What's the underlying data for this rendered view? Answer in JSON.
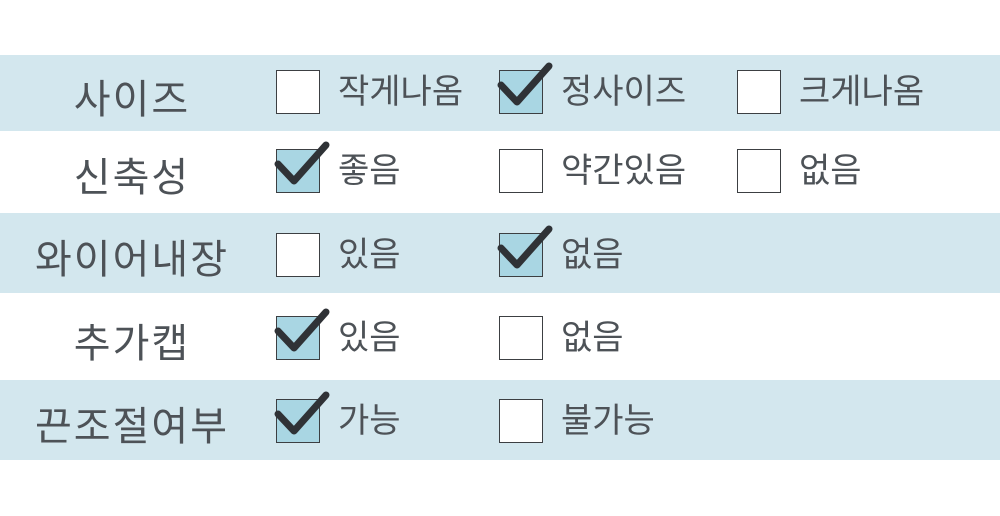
{
  "rows": [
    {
      "label": "사이즈",
      "options": [
        {
          "label": "작게나옴",
          "checked": false
        },
        {
          "label": "정사이즈",
          "checked": true
        },
        {
          "label": "크게나옴",
          "checked": false
        }
      ]
    },
    {
      "label": "신축성",
      "options": [
        {
          "label": "좋음",
          "checked": true
        },
        {
          "label": "약간있음",
          "checked": false
        },
        {
          "label": "없음",
          "checked": false
        }
      ]
    },
    {
      "label": "와이어내장",
      "options": [
        {
          "label": "있음",
          "checked": false
        },
        {
          "label": "없음",
          "checked": true
        }
      ]
    },
    {
      "label": "추가캡",
      "options": [
        {
          "label": "있음",
          "checked": true
        },
        {
          "label": "없음",
          "checked": false
        }
      ]
    },
    {
      "label": "끈조절여부",
      "options": [
        {
          "label": "가능",
          "checked": true
        },
        {
          "label": "불가능",
          "checked": false
        }
      ]
    }
  ],
  "colors": {
    "band": "#d3e7ee",
    "checked_fill": "#a9d6e3",
    "checkmark": "#2f3236",
    "text": "#4d5257"
  }
}
